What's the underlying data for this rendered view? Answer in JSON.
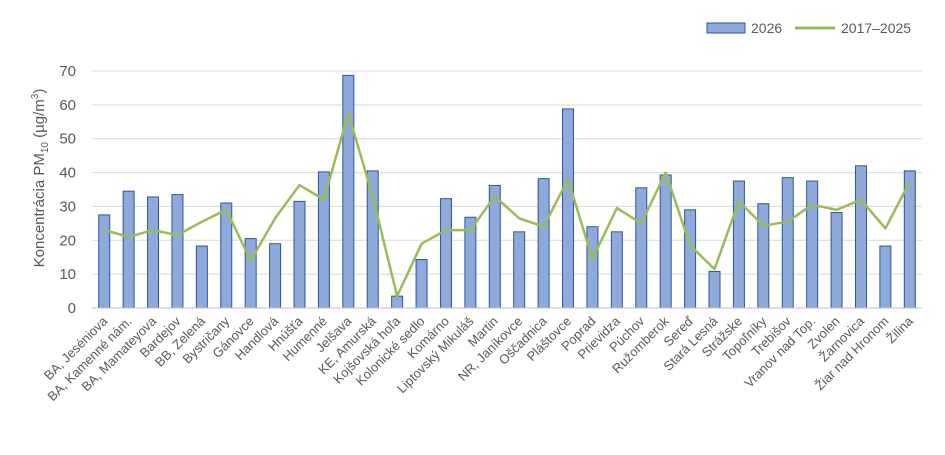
{
  "chart_data": {
    "type": "bar",
    "ylabel": {
      "main": "Koncentrácia PM",
      "sub": "10",
      "unit_open": " (µg/m",
      "sup": "3",
      "unit_close": ")"
    },
    "ylim": [
      0,
      70
    ],
    "yticks": [
      "0",
      "10",
      "20",
      "30",
      "40",
      "50",
      "60",
      "70"
    ],
    "ytick_values": [
      0,
      10,
      20,
      30,
      40,
      50,
      60,
      70
    ],
    "grid": true,
    "legend_position": "top-right",
    "categories": [
      "BA, Jeséniova",
      "BA, Kamenné nám.",
      "BA, Mamateyova",
      "Bardejov",
      "BB, Zelená",
      "Bystričany",
      "Gánovce",
      "Handlová",
      "Hnúšťa",
      "Humenné",
      "Jelšava",
      "KE, Amurská",
      "Kojšovská hoľa",
      "Kolonické sedlo",
      "Komárno",
      "Liptovský Mikuláš",
      "Martin",
      "NR, Janíkovce",
      "Oščadnica",
      "Pláštovce",
      "Poprad",
      "Prievidza",
      "Púchov",
      "Ružomberok",
      "Sereď",
      "Stará Lesná",
      "Strážske",
      "Topoľníky",
      "Trebišov",
      "Vranov nad Top.",
      "Zvolen",
      "Žarnovica",
      "Žiar nad Hronom",
      "Žilina"
    ],
    "series": [
      {
        "name": "2026",
        "type": "bar",
        "color": "#8eaadb",
        "border": "#2f5597",
        "values": [
          27.5,
          34.5,
          32.8,
          33.5,
          18.3,
          31.0,
          20.5,
          19.0,
          31.5,
          40.2,
          68.7,
          40.5,
          3.5,
          14.3,
          32.3,
          26.8,
          36.2,
          22.5,
          38.2,
          58.8,
          24.0,
          22.5,
          35.5,
          39.3,
          29.0,
          10.8,
          37.5,
          30.8,
          38.5,
          37.5,
          28.2,
          42.0,
          18.3,
          40.5
        ]
      },
      {
        "name": "2017–2025",
        "type": "line",
        "color": "#9bbb59",
        "values": [
          23.0,
          21.0,
          23.0,
          21.5,
          25.5,
          29.0,
          14.0,
          26.5,
          36.3,
          32.0,
          57.5,
          33.0,
          3.5,
          19.0,
          23.0,
          23.0,
          33.0,
          26.5,
          24.0,
          38.0,
          14.5,
          29.5,
          25.0,
          40.0,
          18.5,
          11.5,
          31.5,
          24.3,
          25.5,
          30.5,
          29.0,
          32.0,
          23.5,
          37.3
        ]
      }
    ]
  }
}
